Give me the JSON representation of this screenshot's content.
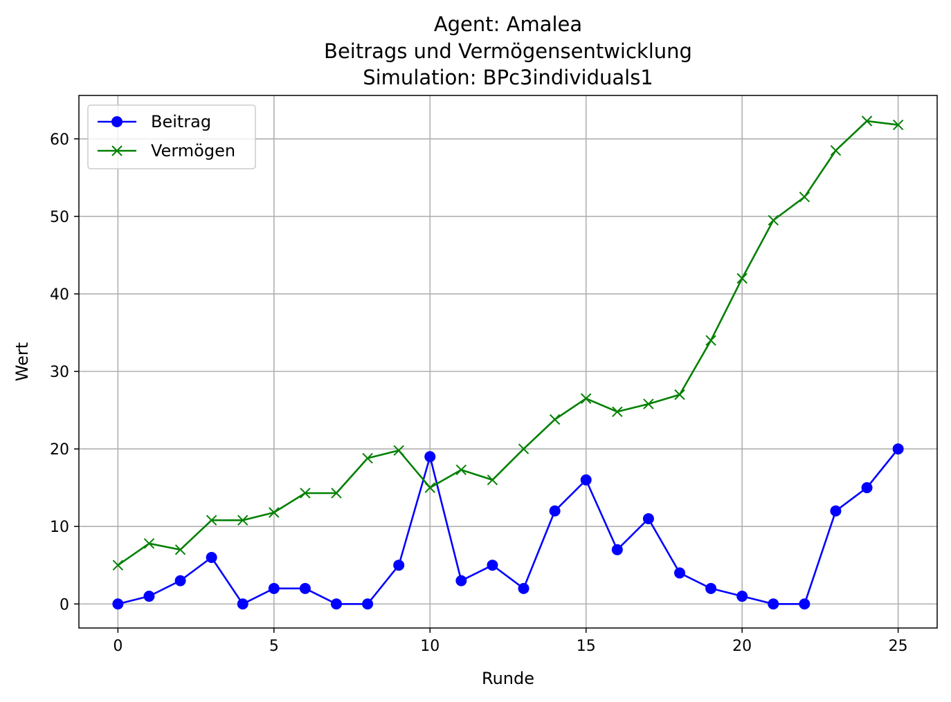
{
  "title_lines": [
    "Agent: Amalea",
    "Beitrags und Vermögensentwicklung",
    "Simulation: BPc3individuals1"
  ],
  "chart_data": {
    "type": "line",
    "title": "Agent: Amalea\nBeitrags und Vermögensentwicklung\nSimulation: BPc3individuals1",
    "xlabel": "Runde",
    "ylabel": "Wert",
    "x": [
      0,
      1,
      2,
      3,
      4,
      5,
      6,
      7,
      8,
      9,
      10,
      11,
      12,
      13,
      14,
      15,
      16,
      17,
      18,
      19,
      20,
      21,
      22,
      23,
      24,
      25
    ],
    "xlim": [
      -1.25,
      26.25
    ],
    "ylim": [
      -3.1,
      65.6
    ],
    "xticks": [
      0,
      5,
      10,
      15,
      20,
      25
    ],
    "yticks": [
      0,
      10,
      20,
      30,
      40,
      50,
      60
    ],
    "grid": true,
    "legend_position": "top-left",
    "series": [
      {
        "name": "Beitrag",
        "color": "#0000ff",
        "marker": "circle",
        "values": [
          0,
          1,
          3,
          6,
          0,
          2,
          2,
          0,
          0,
          5,
          19,
          3,
          5,
          2,
          12,
          16,
          7,
          11,
          4,
          2,
          1,
          0,
          0,
          12,
          15,
          20
        ]
      },
      {
        "name": "Vermögen",
        "color": "#008000",
        "marker": "x",
        "values": [
          5,
          7.8,
          7,
          10.8,
          10.8,
          11.8,
          14.3,
          14.3,
          18.8,
          19.8,
          15,
          17.3,
          16,
          20,
          23.8,
          26.5,
          24.8,
          25.8,
          27,
          34,
          42,
          49.5,
          52.5,
          58.5,
          62.3,
          61.8
        ]
      }
    ]
  }
}
